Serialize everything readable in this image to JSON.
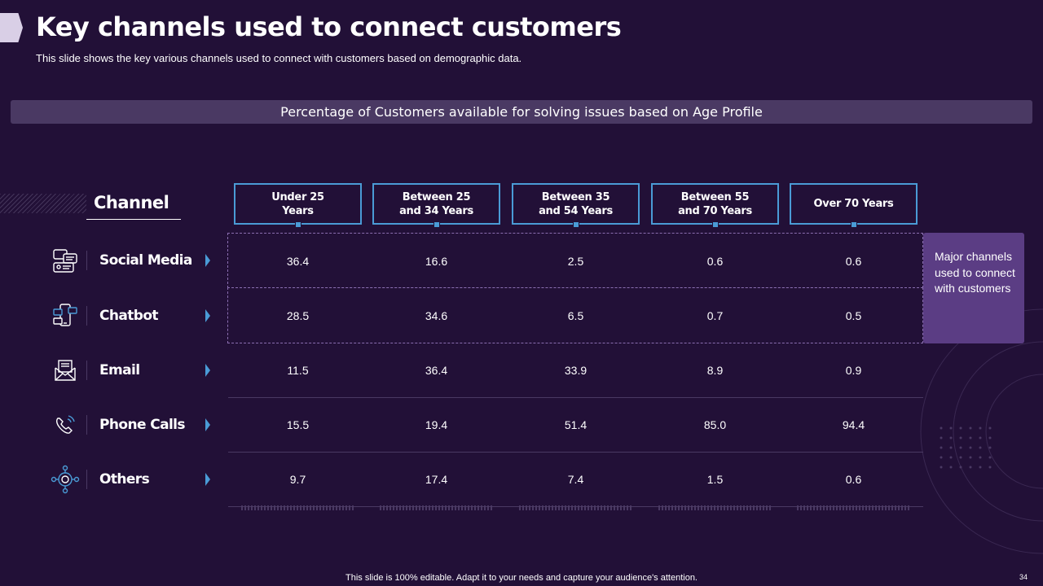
{
  "slide": {
    "title": "Key channels used to connect customers",
    "subtitle": "This slide shows the key various channels used to connect with customers based on demographic data.",
    "banner": "Percentage of Customers available for solving issues based on Age Profile",
    "channel_header": "Channel",
    "callout": "Major channels used to connect with customers",
    "footer": "This slide is 100% editable. Adapt it to your needs and capture your audience's attention.",
    "page_number": "34"
  },
  "columns": [
    {
      "line1": "Under 25",
      "line2": "Years"
    },
    {
      "line1": "Between 25",
      "line2": "and 34 Years"
    },
    {
      "line1": "Between 35",
      "line2": "and 54 Years"
    },
    {
      "line1": "Between 55",
      "line2": "and 70 Years"
    },
    {
      "line1": "Over 70 Years",
      "line2": ""
    }
  ],
  "rows": [
    {
      "label": "Social Media",
      "icon": "social-media-icon",
      "values": [
        "36.4",
        "16.6",
        "2.5",
        "0.6",
        "0.6"
      ]
    },
    {
      "label": "Chatbot",
      "icon": "chatbot-icon",
      "values": [
        "28.5",
        "34.6",
        "6.5",
        "0.7",
        "0.5"
      ]
    },
    {
      "label": "Email",
      "icon": "email-icon",
      "values": [
        "11.5",
        "36.4",
        "33.9",
        "8.9",
        "0.9"
      ]
    },
    {
      "label": "Phone Calls",
      "icon": "phone-icon",
      "values": [
        "15.5",
        "19.4",
        "51.4",
        "85.0",
        "94.4"
      ]
    },
    {
      "label": "Others",
      "icon": "others-icon",
      "values": [
        "9.7",
        "17.4",
        "7.4",
        "1.5",
        "0.6"
      ]
    }
  ],
  "colors": {
    "background": "#221037",
    "accent": "#4a9bd6",
    "callout": "#5b3d84",
    "banner": "#4a3963"
  }
}
